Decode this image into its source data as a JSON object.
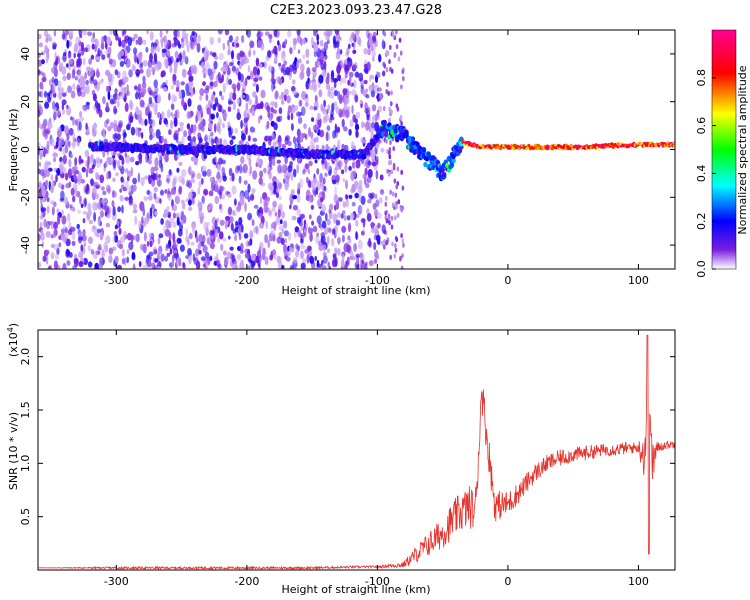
{
  "title": "C2E3.2023.093.23.47.G28",
  "colors": {
    "snr_line": "#e8302a",
    "colormap": [
      "#ffffff",
      "#e6ccff",
      "#7b1fe0",
      "#0000ff",
      "#00ffff",
      "#00ff00",
      "#ffff00",
      "#ff0000",
      "#ff00a0"
    ]
  },
  "chart_data": [
    {
      "type": "heatmap",
      "xlabel": "Height of straight line (km)",
      "ylabel": "Frequency (Hz)",
      "xlim": [
        -360,
        128
      ],
      "ylim": [
        -50,
        50
      ],
      "xticks": [
        -300,
        -200,
        -100,
        0,
        100
      ],
      "yticks": [
        -40,
        -20,
        0,
        20,
        40
      ],
      "colorbar": {
        "label": "Normalized spectral amplitude",
        "range": [
          0.0,
          1.0
        ],
        "ticks": [
          "0.0",
          "0.2",
          "0.4",
          "0.6",
          "0.8"
        ]
      },
      "signal_track": [
        {
          "x": -300,
          "f": 1
        },
        {
          "x": -250,
          "f": 0
        },
        {
          "x": -200,
          "f": 0
        },
        {
          "x": -150,
          "f": -2
        },
        {
          "x": -110,
          "f": -2
        },
        {
          "x": -95,
          "f": 9
        },
        {
          "x": -80,
          "f": 6
        },
        {
          "x": -70,
          "f": 0
        },
        {
          "x": -60,
          "f": -5
        },
        {
          "x": -50,
          "f": -10
        },
        {
          "x": -35,
          "f": 3
        },
        {
          "x": -20,
          "f": 1
        },
        {
          "x": 0,
          "f": 1
        },
        {
          "x": 50,
          "f": 1
        },
        {
          "x": 100,
          "f": 2
        },
        {
          "x": 128,
          "f": 2
        }
      ],
      "grid": false
    },
    {
      "type": "line",
      "xlabel": "Height of straight line (km)",
      "ylabel": "SNR (10 * v/v)",
      "y_multiplier": "(x10",
      "y_multiplier_exp": "4",
      "xlim": [
        -360,
        128
      ],
      "ylim": [
        0,
        2.25
      ],
      "xticks": [
        -300,
        -200,
        -100,
        0,
        100
      ],
      "yticks": [
        "0.5",
        "1.0",
        "1.5",
        "2.0"
      ],
      "series": [
        {
          "x": [
            -360,
            -300,
            -200,
            -150,
            -110,
            -100,
            -80,
            -70,
            -60,
            -50,
            -40,
            -30,
            -25,
            -20,
            -10,
            0,
            10,
            20,
            30,
            40,
            50,
            60,
            70,
            80,
            90,
            100,
            105,
            108,
            110,
            115,
            120,
            128
          ],
          "y": [
            0.02,
            0.02,
            0.02,
            0.02,
            0.03,
            0.03,
            0.05,
            0.15,
            0.25,
            0.35,
            0.5,
            0.6,
            0.55,
            1.67,
            0.6,
            0.62,
            0.75,
            0.9,
            1.0,
            1.05,
            1.08,
            1.1,
            1.12,
            1.13,
            1.14,
            1.15,
            1.1,
            2.2,
            1.0,
            1.15,
            1.17,
            1.18
          ],
          "noise": [
            0.0,
            0.01,
            0.01,
            0.01,
            0.01,
            0.01,
            0.03,
            0.08,
            0.12,
            0.15,
            0.18,
            0.2,
            0.2,
            0.2,
            0.15,
            0.12,
            0.1,
            0.09,
            0.08,
            0.08,
            0.07,
            0.07,
            0.06,
            0.06,
            0.06,
            0.05,
            0.3,
            0.4,
            0.3,
            0.05,
            0.04,
            0.04
          ]
        }
      ],
      "grid": false
    }
  ]
}
